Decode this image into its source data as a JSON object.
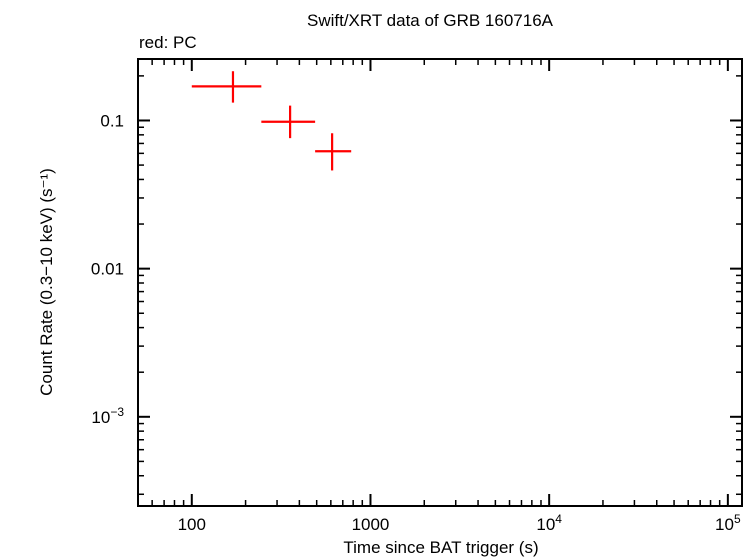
{
  "chart_data": {
    "type": "scatter",
    "title": "Swift/XRT data of GRB 160716A",
    "subtitle": "red: PC",
    "xlabel": "Time since BAT trigger (s)",
    "ylabel": "Count Rate (0.3−10 keV) (s⁻¹)",
    "x_scale": "log",
    "y_scale": "log",
    "xlim": [
      50,
      120000
    ],
    "ylim": [
      0.00025,
      0.26
    ],
    "x_ticks": [
      {
        "value": 100,
        "label": "100",
        "sup": ""
      },
      {
        "value": 1000,
        "label": "1000",
        "sup": ""
      },
      {
        "value": 10000,
        "label": "10",
        "sup": "4"
      },
      {
        "value": 100000,
        "label": "10",
        "sup": "5"
      }
    ],
    "y_ticks": [
      {
        "value": 0.1,
        "label": "0.1",
        "sup": ""
      },
      {
        "value": 0.01,
        "label": "0.01",
        "sup": ""
      },
      {
        "value": 0.001,
        "label": "10",
        "sup": "−3"
      }
    ],
    "grid": false,
    "series": [
      {
        "color": "#ff0000",
        "points": [
          {
            "x": 170,
            "xerr": [
              100,
              245
            ],
            "y": 0.17,
            "yerr": [
              0.132,
              0.215
            ]
          },
          {
            "x": 355,
            "xerr": [
              245,
              490
            ],
            "y": 0.098,
            "yerr": [
              0.076,
              0.126
            ]
          },
          {
            "x": 610,
            "xerr": [
              490,
              780
            ],
            "y": 0.062,
            "yerr": [
              0.046,
              0.082
            ]
          }
        ]
      }
    ]
  }
}
